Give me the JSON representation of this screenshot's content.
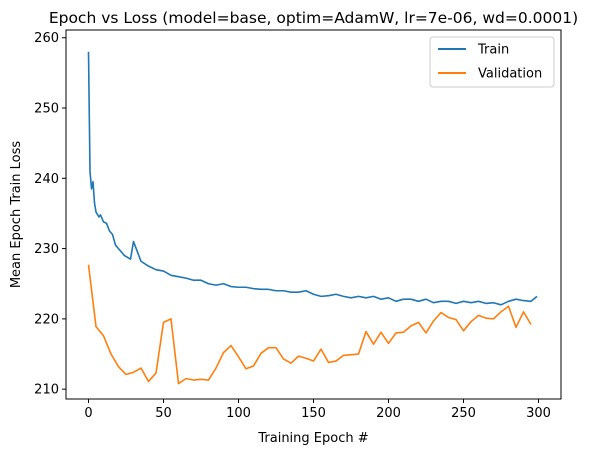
{
  "chart_data": {
    "type": "line",
    "title": "Epoch vs Loss (model=base, optim=AdamW, lr=7e-06, wd=0.0001)",
    "xlabel": "Training Epoch #",
    "ylabel": "Mean Epoch Train Loss",
    "xlim": [
      -15,
      315
    ],
    "ylim": [
      208.6,
      261.1
    ],
    "xticks": [
      0,
      50,
      100,
      150,
      200,
      250,
      300
    ],
    "yticks": [
      210,
      220,
      230,
      240,
      250,
      260
    ],
    "legend_position": "top-right",
    "grid": false,
    "series": [
      {
        "name": "Train",
        "color": "#1f77b4",
        "x": [
          0,
          1,
          2,
          3,
          4,
          5,
          7,
          8,
          10,
          12,
          14,
          16,
          18,
          20,
          24,
          28,
          30,
          35,
          40,
          45,
          50,
          55,
          60,
          65,
          70,
          75,
          80,
          85,
          90,
          95,
          100,
          105,
          110,
          115,
          120,
          125,
          130,
          135,
          140,
          145,
          150,
          155,
          160,
          165,
          170,
          175,
          180,
          185,
          190,
          195,
          200,
          205,
          210,
          215,
          220,
          225,
          230,
          235,
          240,
          245,
          250,
          255,
          260,
          265,
          270,
          275,
          280,
          285,
          290,
          295,
          299
        ],
        "y": [
          258.0,
          241.0,
          238.5,
          239.5,
          236.5,
          235.2,
          234.5,
          234.8,
          233.8,
          233.6,
          232.5,
          232.0,
          230.5,
          230.0,
          229.0,
          228.5,
          231.0,
          228.2,
          227.5,
          227.0,
          226.8,
          226.2,
          226.0,
          225.8,
          225.5,
          225.5,
          225.0,
          224.8,
          225.0,
          224.6,
          224.5,
          224.5,
          224.3,
          224.2,
          224.2,
          224.0,
          224.0,
          223.8,
          223.8,
          224.0,
          223.5,
          223.2,
          223.3,
          223.5,
          223.2,
          223.0,
          223.2,
          223.0,
          223.2,
          222.8,
          223.0,
          222.5,
          222.8,
          222.8,
          222.5,
          222.8,
          222.3,
          222.5,
          222.5,
          222.2,
          222.5,
          222.3,
          222.5,
          222.2,
          222.3,
          222.0,
          222.5,
          222.8,
          222.6,
          222.5,
          223.2
        ]
      },
      {
        "name": "Validation",
        "color": "#ff7f0e",
        "x": [
          0,
          5,
          10,
          15,
          20,
          25,
          30,
          35,
          40,
          45,
          50,
          55,
          60,
          65,
          70,
          75,
          80,
          85,
          90,
          95,
          100,
          105,
          110,
          115,
          120,
          125,
          130,
          135,
          140,
          145,
          150,
          155,
          160,
          165,
          170,
          175,
          180,
          185,
          190,
          195,
          200,
          205,
          210,
          215,
          220,
          225,
          230,
          235,
          240,
          245,
          250,
          255,
          260,
          265,
          270,
          275,
          280,
          285,
          290,
          295
        ],
        "y": [
          227.7,
          218.9,
          217.6,
          215.0,
          213.2,
          212.1,
          212.4,
          213.0,
          211.1,
          212.3,
          219.5,
          220.0,
          210.8,
          211.5,
          211.3,
          211.4,
          211.3,
          213.0,
          215.2,
          216.2,
          214.6,
          212.9,
          213.3,
          215.1,
          215.9,
          215.9,
          214.3,
          213.7,
          214.7,
          214.4,
          214.0,
          215.7,
          213.8,
          214.0,
          214.8,
          214.9,
          215.0,
          218.2,
          216.4,
          218.1,
          216.5,
          218.0,
          218.1,
          219.0,
          219.5,
          218.0,
          219.7,
          220.9,
          220.2,
          219.9,
          218.3,
          219.6,
          220.5,
          220.1,
          220.0,
          221.0,
          221.8,
          218.8,
          221.0,
          219.2
        ]
      }
    ]
  }
}
